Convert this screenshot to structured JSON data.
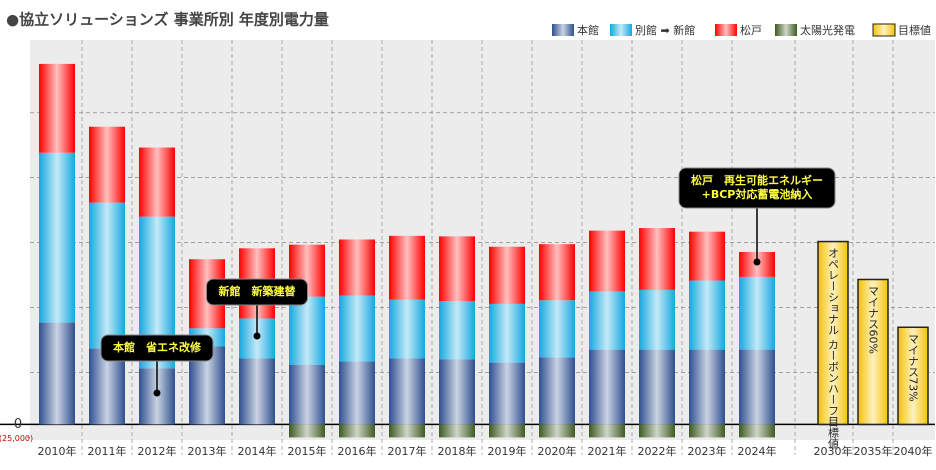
{
  "chart_data": {
    "type": "bar",
    "stacked": true,
    "title": "●協立ソリューションズ 事業所別 年度別電力量",
    "categories": [
      "2010年",
      "2011年",
      "2012年",
      "2013年",
      "2014年",
      "2015年",
      "2016年",
      "2017年",
      "2018年",
      "2019年",
      "2020年",
      "2021年",
      "2022年",
      "2023年",
      "2024年",
      "2030年",
      "2035年",
      "2040年"
    ],
    "series": [
      {
        "name": "本館",
        "color": "#2e4f8f",
        "values": [
          196000,
          146000,
          108000,
          150000,
          127000,
          115000,
          121000,
          127000,
          125000,
          119000,
          129000,
          144000,
          144000,
          144000,
          144000,
          null,
          null,
          null
        ]
      },
      {
        "name": "別館 ➡ 新館",
        "color": "#14a8e0",
        "values": [
          327000,
          281000,
          292000,
          35000,
          77000,
          131000,
          127000,
          113000,
          112000,
          113000,
          110000,
          112000,
          115000,
          133000,
          140000,
          null,
          null,
          null
        ]
      },
      {
        "name": "松戸",
        "color": "#ff0000",
        "values": [
          171000,
          146000,
          133000,
          133000,
          135000,
          100000,
          108000,
          123000,
          125000,
          110000,
          108000,
          117000,
          119000,
          94000,
          48000,
          null,
          null,
          null
        ]
      },
      {
        "name": "太陽光発電",
        "color": "#3d5a22",
        "values": [
          null,
          null,
          null,
          null,
          null,
          -25000,
          -25000,
          -25000,
          -25000,
          -25000,
          -25000,
          -25000,
          -25000,
          -25000,
          -25000,
          null,
          null,
          null
        ]
      },
      {
        "name": "目標値",
        "color": "#f5c400",
        "values": [
          null,
          null,
          null,
          null,
          null,
          null,
          null,
          null,
          null,
          null,
          null,
          null,
          null,
          null,
          null,
          352000,
          279000,
          187000
        ],
        "bar_texts": [
          null,
          null,
          null,
          null,
          null,
          null,
          null,
          null,
          null,
          null,
          null,
          null,
          null,
          null,
          null,
          "オペレーショナル カーボンハーフ目標値",
          "マイナス60%",
          "マイナス73%"
        ]
      }
    ],
    "ylim": [
      -30000,
      740000
    ],
    "yticks": [
      {
        "value": -25000,
        "label": "(25,000)"
      },
      0
    ],
    "ygrid": [
      100000,
      225000,
      350000,
      475000,
      600000
    ],
    "annotations": [
      {
        "category": "2012年",
        "lines": [
          "本館　省エネ改修"
        ]
      },
      {
        "category": "2014年",
        "lines": [
          "新館　新築建替"
        ]
      },
      {
        "category": "2024年",
        "lines": [
          "松戸　再生可能エネルギー",
          "+BCP対応蓄電池納入"
        ]
      }
    ]
  }
}
